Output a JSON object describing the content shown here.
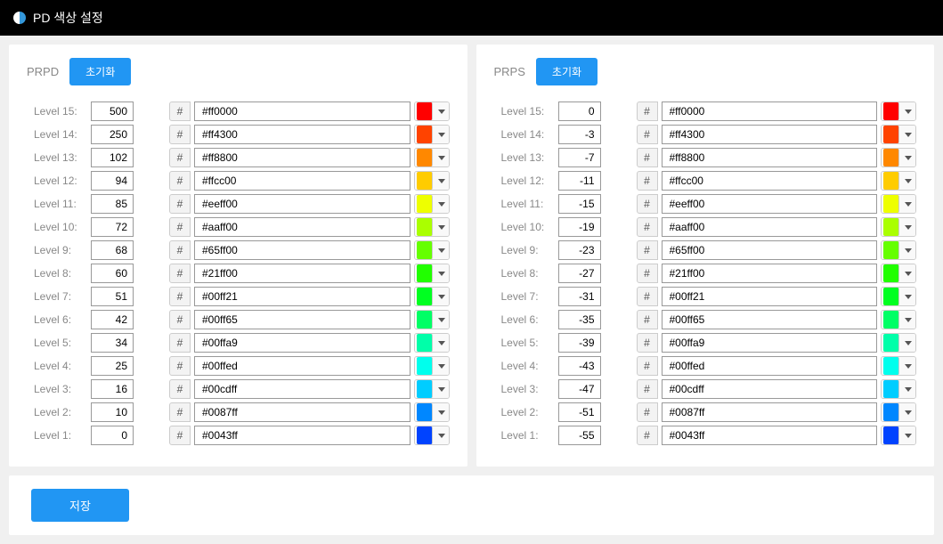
{
  "header": {
    "title": "PD 색상 설정"
  },
  "buttons": {
    "reset": "초기화",
    "save": "저장",
    "hash": "#"
  },
  "panels": {
    "prpd": {
      "title": "PRPD",
      "levels": [
        {
          "label": "Level 15:",
          "value": "500",
          "hex": "#ff0000",
          "color": "#ff0000"
        },
        {
          "label": "Level 14:",
          "value": "250",
          "hex": "#ff4300",
          "color": "#ff4300"
        },
        {
          "label": "Level 13:",
          "value": "102",
          "hex": "#ff8800",
          "color": "#ff8800"
        },
        {
          "label": "Level 12:",
          "value": "94",
          "hex": "#ffcc00",
          "color": "#ffcc00"
        },
        {
          "label": "Level 11:",
          "value": "85",
          "hex": "#eeff00",
          "color": "#eeff00"
        },
        {
          "label": "Level 10:",
          "value": "72",
          "hex": "#aaff00",
          "color": "#aaff00"
        },
        {
          "label": "Level 9:",
          "value": "68",
          "hex": "#65ff00",
          "color": "#65ff00"
        },
        {
          "label": "Level 8:",
          "value": "60",
          "hex": "#21ff00",
          "color": "#21ff00"
        },
        {
          "label": "Level 7:",
          "value": "51",
          "hex": "#00ff21",
          "color": "#00ff21"
        },
        {
          "label": "Level 6:",
          "value": "42",
          "hex": "#00ff65",
          "color": "#00ff65"
        },
        {
          "label": "Level 5:",
          "value": "34",
          "hex": "#00ffa9",
          "color": "#00ffa9"
        },
        {
          "label": "Level 4:",
          "value": "25",
          "hex": "#00ffed",
          "color": "#00ffed"
        },
        {
          "label": "Level 3:",
          "value": "16",
          "hex": "#00cdff",
          "color": "#00cdff"
        },
        {
          "label": "Level 2:",
          "value": "10",
          "hex": "#0087ff",
          "color": "#0087ff"
        },
        {
          "label": "Level 1:",
          "value": "0",
          "hex": "#0043ff",
          "color": "#0043ff"
        }
      ]
    },
    "prps": {
      "title": "PRPS",
      "levels": [
        {
          "label": "Level 15:",
          "value": "0",
          "hex": "#ff0000",
          "color": "#ff0000"
        },
        {
          "label": "Level 14:",
          "value": "-3",
          "hex": "#ff4300",
          "color": "#ff4300"
        },
        {
          "label": "Level 13:",
          "value": "-7",
          "hex": "#ff8800",
          "color": "#ff8800"
        },
        {
          "label": "Level 12:",
          "value": "-11",
          "hex": "#ffcc00",
          "color": "#ffcc00"
        },
        {
          "label": "Level 11:",
          "value": "-15",
          "hex": "#eeff00",
          "color": "#eeff00"
        },
        {
          "label": "Level 10:",
          "value": "-19",
          "hex": "#aaff00",
          "color": "#aaff00"
        },
        {
          "label": "Level 9:",
          "value": "-23",
          "hex": "#65ff00",
          "color": "#65ff00"
        },
        {
          "label": "Level 8:",
          "value": "-27",
          "hex": "#21ff00",
          "color": "#21ff00"
        },
        {
          "label": "Level 7:",
          "value": "-31",
          "hex": "#00ff21",
          "color": "#00ff21"
        },
        {
          "label": "Level 6:",
          "value": "-35",
          "hex": "#00ff65",
          "color": "#00ff65"
        },
        {
          "label": "Level 5:",
          "value": "-39",
          "hex": "#00ffa9",
          "color": "#00ffa9"
        },
        {
          "label": "Level 4:",
          "value": "-43",
          "hex": "#00ffed",
          "color": "#00ffed"
        },
        {
          "label": "Level 3:",
          "value": "-47",
          "hex": "#00cdff",
          "color": "#00cdff"
        },
        {
          "label": "Level 2:",
          "value": "-51",
          "hex": "#0087ff",
          "color": "#0087ff"
        },
        {
          "label": "Level 1:",
          "value": "-55",
          "hex": "#0043ff",
          "color": "#0043ff"
        }
      ]
    }
  }
}
